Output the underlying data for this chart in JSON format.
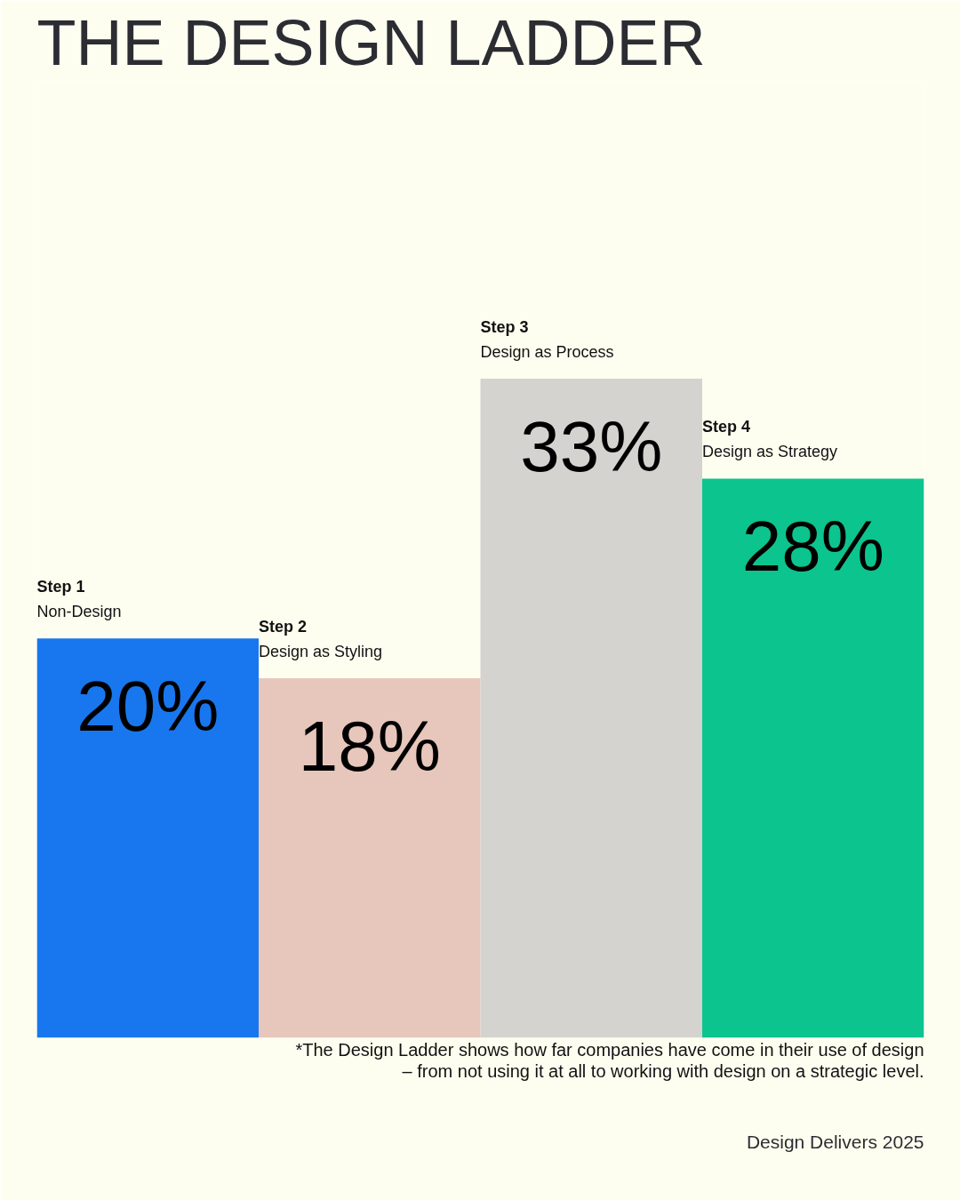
{
  "chart_data": {
    "type": "bar",
    "title": "THE DESIGN LADDER",
    "tick_labels": false,
    "categories": [
      "Step 1\nNon-Design",
      "Step 2\nDesign as Styling",
      "Step 3\nDesign as Process",
      "Step 4\nDesign as Strategy"
    ],
    "values": [
      20,
      18,
      33,
      28
    ],
    "value_labels": [
      "20%",
      "18%",
      "33%",
      "28%"
    ],
    "colors": [
      "#1877ee",
      "#e7c6bb",
      "#d4d3d0",
      "#0cc48e"
    ],
    "annotations": [
      "*The Design Ladder shows how far companies have come in their use of design\n– from not using it at all to working with design on a strategic level.",
      "Design Delivers 2025"
    ]
  }
}
